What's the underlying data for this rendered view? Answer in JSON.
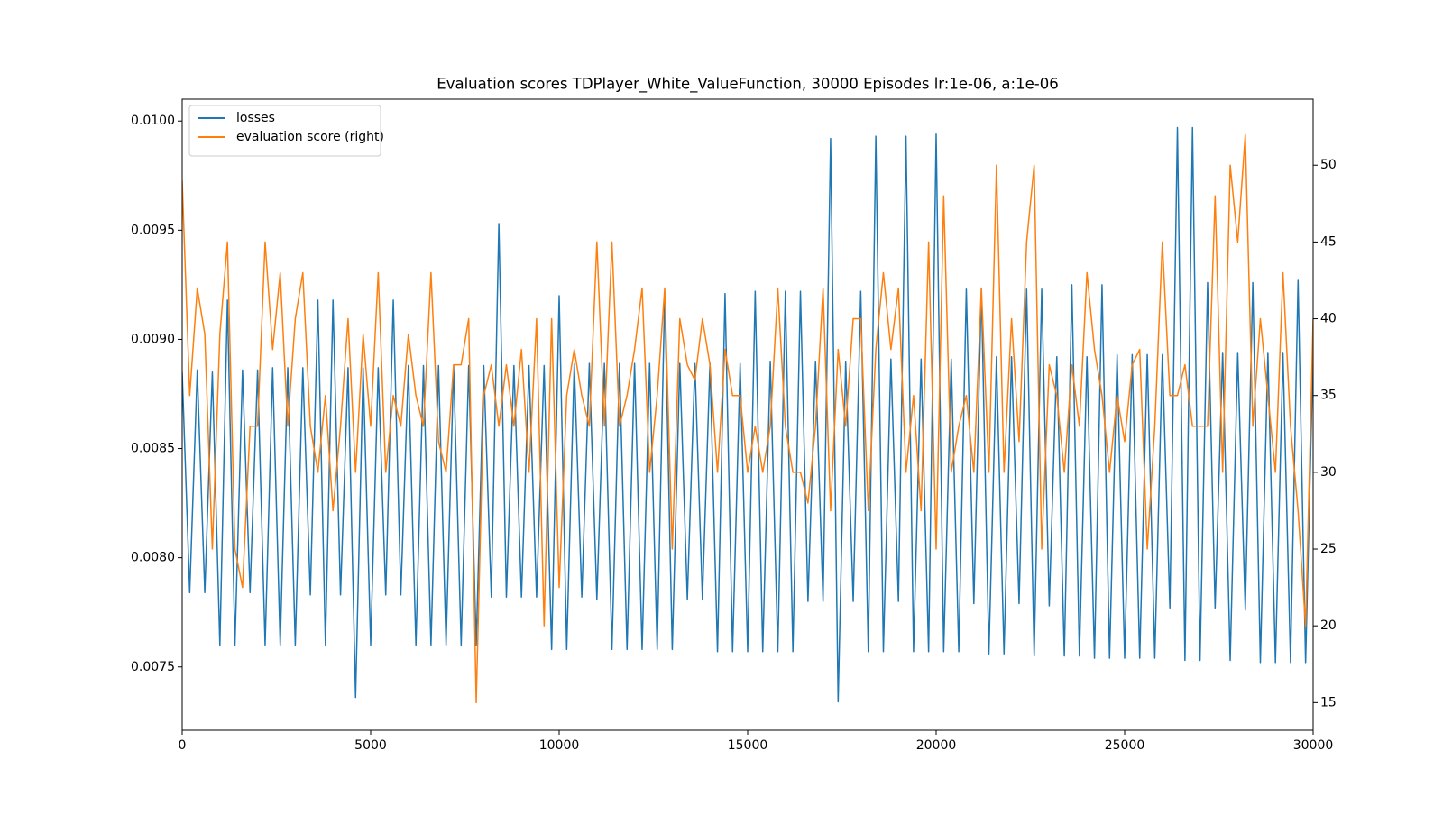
{
  "chart_data": {
    "type": "line",
    "title": "Evaluation scores TDPlayer_White_ValueFunction, 30000 Episodes lr:1e-06, a:1e-06",
    "legend": "upper left",
    "xlim": [
      0,
      30000
    ],
    "xticks": [
      0,
      5000,
      10000,
      15000,
      20000,
      25000,
      30000
    ],
    "ylim": [
      0.00721,
      0.0101
    ],
    "yticks": [
      0.0075,
      {
        "value": 0.008,
        "label": "0.0080"
      },
      0.0085,
      {
        "value": 0.009,
        "label": "0.0090"
      },
      0.0095,
      {
        "value": 0.01,
        "label": "0.0100"
      }
    ],
    "y2lim": [
      13.2,
      54.3
    ],
    "y2ticks": [
      15,
      20,
      25,
      30,
      35,
      40,
      45,
      50
    ],
    "x": [
      0,
      200,
      400,
      600,
      800,
      1000,
      1200,
      1400,
      1600,
      1800,
      2000,
      2200,
      2400,
      2600,
      2800,
      3000,
      3200,
      3400,
      3600,
      3800,
      4000,
      4200,
      4400,
      4600,
      4800,
      5000,
      5200,
      5400,
      5600,
      5800,
      6000,
      6200,
      6400,
      6600,
      6800,
      7000,
      7200,
      7400,
      7600,
      7800,
      8000,
      8200,
      8400,
      8600,
      8800,
      9000,
      9200,
      9400,
      9600,
      9800,
      10000,
      10200,
      10400,
      10600,
      10800,
      11000,
      11200,
      11400,
      11600,
      11800,
      12000,
      12200,
      12400,
      12600,
      12800,
      13000,
      13200,
      13400,
      13600,
      13800,
      14000,
      14200,
      14400,
      14600,
      14800,
      15000,
      15200,
      15400,
      15600,
      15800,
      16000,
      16200,
      16400,
      16600,
      16800,
      17000,
      17200,
      17400,
      17600,
      17800,
      18000,
      18200,
      18400,
      18600,
      18800,
      19000,
      19200,
      19400,
      19600,
      19800,
      20000,
      20200,
      20400,
      20600,
      20800,
      21000,
      21200,
      21400,
      21600,
      21800,
      22000,
      22200,
      22400,
      22600,
      22800,
      23000,
      23200,
      23400,
      23600,
      23800,
      24000,
      24200,
      24400,
      24600,
      24800,
      25000,
      25200,
      25400,
      25600,
      25800,
      26000,
      26200,
      26400,
      26600,
      26800,
      27000,
      27200,
      27400,
      27600,
      27800,
      28000,
      28200,
      28400,
      28600,
      28800,
      29000,
      29200,
      29400,
      29600,
      29800,
      30000
    ],
    "series": [
      {
        "name": "losses",
        "color": "#1f77b4",
        "axis": "y",
        "values": [
          0.00885,
          0.00784,
          0.00886,
          0.00784,
          0.00885,
          0.0076,
          0.00918,
          0.0076,
          0.00886,
          0.00784,
          0.00886,
          0.0076,
          0.00887,
          0.0076,
          0.00887,
          0.0076,
          0.00887,
          0.00783,
          0.00918,
          0.0076,
          0.00918,
          0.00783,
          0.00887,
          0.00736,
          0.00887,
          0.0076,
          0.00887,
          0.00783,
          0.00918,
          0.00783,
          0.00888,
          0.0076,
          0.00888,
          0.0076,
          0.00888,
          0.0076,
          0.00888,
          0.0076,
          0.00888,
          0.0076,
          0.00888,
          0.00782,
          0.00953,
          0.00782,
          0.00888,
          0.00782,
          0.00888,
          0.00782,
          0.00888,
          0.00758,
          0.0092,
          0.00758,
          0.00889,
          0.00782,
          0.00889,
          0.00781,
          0.00889,
          0.00758,
          0.00889,
          0.00758,
          0.00889,
          0.00758,
          0.00889,
          0.00758,
          0.00921,
          0.00758,
          0.00889,
          0.00781,
          0.00889,
          0.00781,
          0.00889,
          0.00757,
          0.00921,
          0.00757,
          0.00889,
          0.00757,
          0.00922,
          0.00757,
          0.0089,
          0.00757,
          0.00922,
          0.00757,
          0.00922,
          0.0078,
          0.0089,
          0.0078,
          0.00992,
          0.00734,
          0.0089,
          0.0078,
          0.00922,
          0.00757,
          0.00993,
          0.00757,
          0.00891,
          0.0078,
          0.00993,
          0.00757,
          0.00891,
          0.00757,
          0.00994,
          0.00757,
          0.00891,
          0.00757,
          0.00923,
          0.00779,
          0.00923,
          0.00756,
          0.00892,
          0.00756,
          0.00892,
          0.00779,
          0.00923,
          0.00755,
          0.00923,
          0.00778,
          0.00892,
          0.00755,
          0.00925,
          0.00755,
          0.00892,
          0.00754,
          0.00925,
          0.00754,
          0.00893,
          0.00754,
          0.00893,
          0.00754,
          0.00893,
          0.00754,
          0.00893,
          0.00777,
          0.00997,
          0.00753,
          0.00997,
          0.00753,
          0.00926,
          0.00777,
          0.00894,
          0.00753,
          0.00894,
          0.00776,
          0.00926,
          0.00752,
          0.00894,
          0.00752,
          0.00894,
          0.00752,
          0.00927,
          0.00752,
          0.00895
        ]
      },
      {
        "name": "evaluation score (right)",
        "color": "#ff7f0e",
        "axis": "y2",
        "values": [
          49,
          35,
          42,
          39,
          25,
          39,
          45,
          25,
          22.5,
          33,
          33,
          45,
          38,
          43,
          33,
          40,
          43,
          33,
          30,
          35,
          27.5,
          33,
          40,
          30,
          39,
          33,
          43,
          30,
          35,
          33,
          39,
          35,
          33,
          43,
          32,
          30,
          37,
          37,
          40,
          15,
          35,
          37,
          33,
          37,
          33,
          38,
          30,
          40,
          20,
          40,
          22.5,
          35,
          38,
          35,
          33,
          45,
          33,
          45,
          33,
          35,
          38,
          42,
          30,
          35,
          42,
          25,
          40,
          37,
          36,
          40,
          37,
          30,
          38,
          35,
          35,
          30,
          33,
          30,
          33,
          42,
          33,
          30,
          30,
          28,
          33,
          42,
          27.5,
          38,
          33,
          40,
          40,
          27.5,
          38,
          43,
          38,
          42,
          30,
          35,
          27.5,
          45,
          25,
          48,
          30,
          33,
          35,
          30,
          42,
          30,
          50,
          30,
          40,
          32,
          45,
          50,
          25,
          37,
          35,
          30,
          37,
          33,
          43,
          38,
          35,
          30,
          35,
          32,
          37,
          38,
          25,
          33,
          45,
          35,
          35,
          37,
          33,
          33,
          33,
          48,
          30,
          50,
          45,
          52,
          33,
          40,
          35,
          30,
          43,
          33,
          27.5,
          20,
          40
        ]
      }
    ]
  }
}
